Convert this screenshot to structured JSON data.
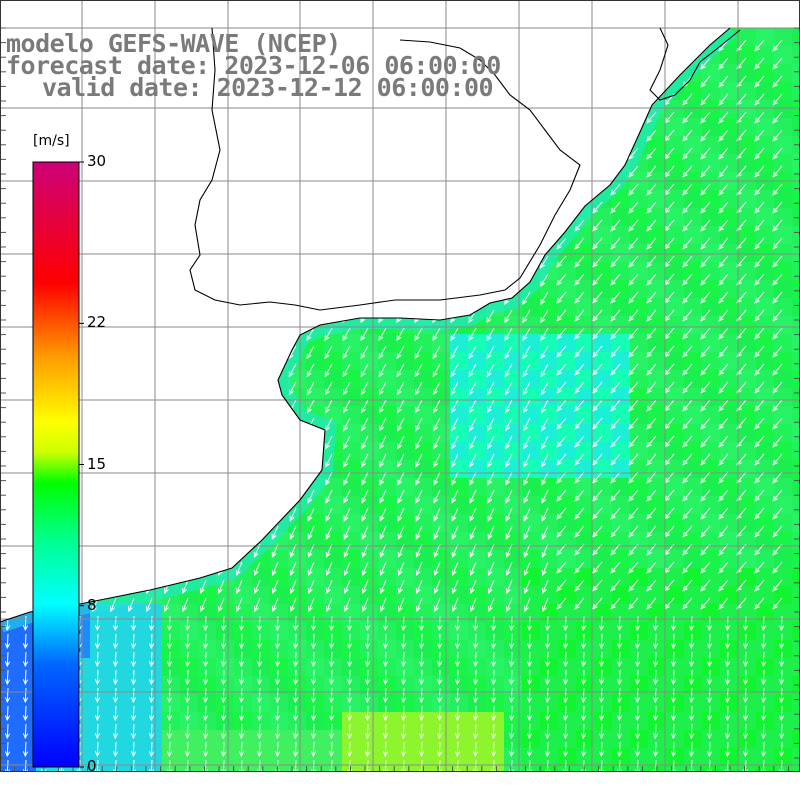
{
  "title": {
    "model": "modelo GEFS-WAVE (NCEP)",
    "forecast": "forecast date: 2023-12-06 06:00:00",
    "valid": "valid date: 2023-12-12 06:00:00"
  },
  "colorbar": {
    "unit": "[m/s]",
    "min": 0,
    "max": 30,
    "tick_labels": [
      "30",
      "22",
      "15",
      "8",
      "0"
    ],
    "tick_values": [
      30,
      22,
      15,
      8,
      0
    ],
    "colors": [
      "#0000ff",
      "#0099ff",
      "#00ffff",
      "#00ff66",
      "#00ff00",
      "#ccff00",
      "#ffff00",
      "#ff9900",
      "#ff0000",
      "#cc0066"
    ]
  },
  "field": {
    "variable": "wind speed",
    "dominant_direction": "from north-east, pointing south-west",
    "vector_color": "#ffffff",
    "land_color": "#ffffff",
    "coastline_color": "#000000",
    "grid_color": "#888888"
  }
}
